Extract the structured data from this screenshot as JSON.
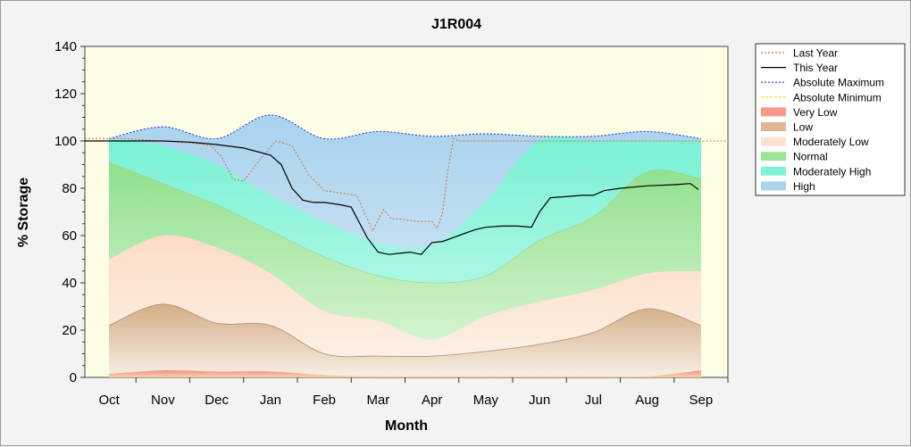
{
  "chart_data": {
    "type": "area",
    "title": "J1R004",
    "xlabel": "Month",
    "ylabel": "% Storage",
    "ylim": [
      0,
      140
    ],
    "yticks": [
      0,
      20,
      40,
      60,
      80,
      100,
      120,
      140
    ],
    "months": [
      "Oct",
      "Nov",
      "Dec",
      "Jan",
      "Feb",
      "Mar",
      "Apr",
      "May",
      "Jun",
      "Jul",
      "Aug",
      "Sep"
    ],
    "xrange_months": [
      -0.45,
      11.5
    ],
    "grid": false,
    "legend_position": "right",
    "bands": {
      "x": [
        0,
        1,
        2,
        3,
        4,
        5,
        6,
        7,
        8,
        9,
        10,
        11
      ],
      "very_low_top": [
        1.5,
        3,
        2.5,
        2.5,
        1,
        0.5,
        0.5,
        0.5,
        0.5,
        0.5,
        0.5,
        3
      ],
      "low_top": [
        22,
        31,
        23,
        22,
        10,
        9,
        9,
        11,
        14,
        19,
        29,
        22
      ],
      "moderately_low_top": [
        50,
        60,
        55,
        44,
        28,
        24,
        16,
        26,
        32,
        37,
        44,
        45
      ],
      "normal_top": [
        91,
        82,
        73,
        62,
        51,
        43,
        40,
        43,
        58,
        68,
        87,
        84
      ],
      "moderately_high_top": [
        101,
        98,
        90,
        77,
        66,
        57,
        56,
        75,
        100,
        100,
        100,
        100
      ],
      "high_top": [
        101,
        106,
        101,
        111,
        101,
        104,
        102,
        103,
        102,
        102,
        104,
        101
      ]
    },
    "series": [
      {
        "name": "Last Year",
        "x": [
          -0.45,
          0.3,
          1,
          1.6,
          1.9,
          2.1,
          2.3,
          2.5,
          2.8,
          3.1,
          3.4,
          3.7,
          4,
          4.3,
          4.6,
          4.9,
          5.1,
          5.25,
          5.4,
          5.7,
          6,
          6.1,
          6.2,
          6.3,
          6.4,
          6.5,
          7,
          8,
          9,
          10,
          11,
          11.5
        ],
        "y": [
          101,
          101,
          100,
          99,
          98,
          93,
          84,
          83,
          92,
          100,
          98,
          86,
          79,
          78,
          77,
          62,
          71,
          67,
          67,
          66,
          66,
          63,
          70,
          88,
          101,
          100,
          100,
          100,
          100,
          100,
          100,
          100
        ]
      },
      {
        "name": "This Year",
        "x": [
          -0.45,
          0,
          0.5,
          1,
          1.5,
          2,
          2.5,
          3,
          3.2,
          3.4,
          3.6,
          3.8,
          4,
          4.3,
          4.5,
          4.8,
          5,
          5.2,
          5.4,
          5.6,
          5.8,
          6,
          6.2,
          6.5,
          6.8,
          7,
          7.3,
          7.6,
          7.85,
          8,
          8.2,
          8.5,
          8.8,
          9,
          9.2,
          9.5,
          10,
          10.5,
          10.8,
          10.95
        ],
        "y": [
          100,
          100,
          100,
          100,
          99.5,
          98.5,
          97,
          94,
          90,
          80,
          75,
          74,
          74,
          73,
          72,
          59,
          53,
          52,
          52.5,
          53,
          52,
          57,
          57.5,
          60,
          62.5,
          63.5,
          64,
          64,
          63.5,
          70,
          76,
          76.5,
          77,
          77,
          79,
          80,
          81,
          81.5,
          82,
          79.5
        ]
      },
      {
        "name": "Absolute Maximum",
        "values": [
          101,
          106,
          101,
          111,
          101,
          104,
          102,
          103,
          102,
          102,
          104,
          101
        ]
      },
      {
        "name": "Absolute Minimum",
        "values": [
          0,
          0,
          0,
          0,
          0,
          0,
          0,
          0,
          0,
          0,
          0,
          0
        ]
      }
    ],
    "legend": [
      {
        "label": "Last Year",
        "kind": "line",
        "color": "#c87537",
        "dash": "2,2"
      },
      {
        "label": "This Year",
        "kind": "line",
        "color": "#000000",
        "dash": ""
      },
      {
        "label": "Absolute Maximum",
        "kind": "line",
        "color": "#1f2fe0",
        "dash": "2,2"
      },
      {
        "label": "Absolute Minimum",
        "kind": "line",
        "color": "#f0e000",
        "dash": "3,2"
      },
      {
        "label": "Very Low",
        "kind": "fill",
        "color": "#f59a86"
      },
      {
        "label": "Low",
        "kind": "fill",
        "color": "#dcb895"
      },
      {
        "label": "Moderately Low",
        "kind": "fill",
        "color": "#fbe2cf"
      },
      {
        "label": "Normal",
        "kind": "fill",
        "color": "#9ae596"
      },
      {
        "label": "Moderately High",
        "kind": "fill",
        "color": "#7ff3d6"
      },
      {
        "label": "High",
        "kind": "fill",
        "color": "#a9d3ef"
      }
    ],
    "colors": {
      "very_low": "#f59a86",
      "low": "#dcb895",
      "moderately_low": "#fbe2cf",
      "normal": "#9ae596",
      "moderately_high": "#7ff3d6",
      "high": "#b9dcf0",
      "plot_background": "#fdfde6"
    }
  }
}
